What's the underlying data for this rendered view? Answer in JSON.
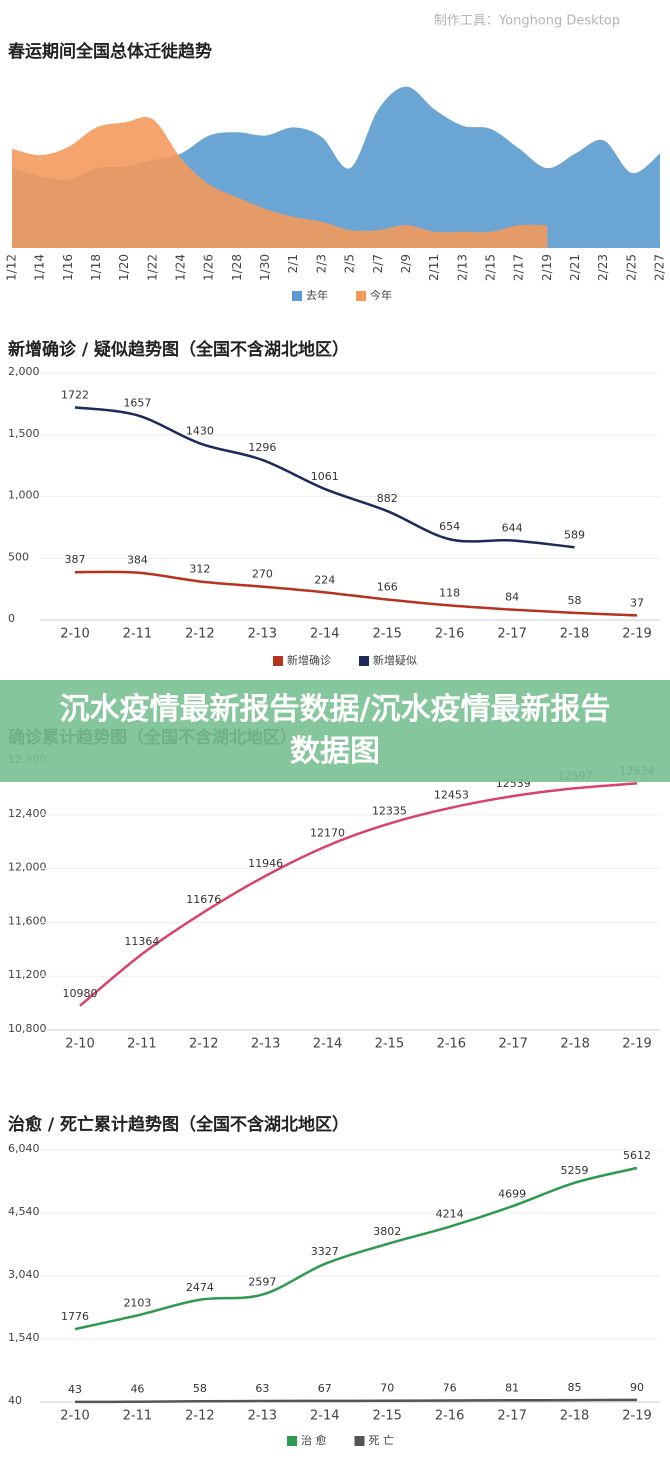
{
  "watermark": "制作工具：Yonghong Desktop",
  "banner": "沉水疫情最新报告数据/沉水疫情最新报告数据图",
  "chart_data": [
    {
      "type": "area",
      "title": "春运期间全国总体迁徙趋势",
      "categories": [
        "1/12",
        "1/14",
        "1/16",
        "1/18",
        "1/20",
        "1/22",
        "1/24",
        "1/26",
        "1/28",
        "1/30",
        "2/1",
        "2/3",
        "2/5",
        "2/7",
        "2/9",
        "2/11",
        "2/13",
        "2/15",
        "2/17",
        "2/19",
        "2/21",
        "2/23",
        "2/25",
        "2/27"
      ],
      "ylim": [
        0,
        100
      ],
      "series": [
        {
          "name": "去年",
          "color": "#5b9bcf",
          "values": [
            49,
            44,
            42,
            49,
            50,
            54,
            58,
            69,
            71,
            69,
            74,
            68,
            49,
            85,
            99,
            85,
            75,
            73,
            61,
            49,
            58,
            66,
            46,
            58
          ]
        },
        {
          "name": "今年",
          "color": "#f39a5c",
          "values": [
            61,
            57,
            62,
            74,
            77,
            79,
            55,
            39,
            31,
            24,
            19,
            16,
            11,
            11,
            14,
            10,
            10,
            10,
            14,
            14,
            null,
            null,
            null,
            null
          ]
        }
      ]
    },
    {
      "type": "line",
      "title": "新增确诊 / 疑似趋势图（全国不含湖北地区）",
      "categories": [
        "2-10",
        "2-11",
        "2-12",
        "2-13",
        "2-14",
        "2-15",
        "2-16",
        "2-17",
        "2-18",
        "2-19"
      ],
      "ylim": [
        0,
        2000
      ],
      "yticks": [
        0,
        500,
        {
          "value": 1000,
          "label": "1,000"
        },
        {
          "value": 1500,
          "label": "1,500"
        },
        {
          "value": 2000,
          "label": "2,000"
        }
      ],
      "grid": true,
      "series": [
        {
          "name": "新增确诊",
          "color": "#b5331f",
          "values": [
            387,
            384,
            312,
            270,
            224,
            166,
            118,
            84,
            58,
            37
          ]
        },
        {
          "name": "新增疑似",
          "color": "#1b2a5a",
          "values": [
            1722,
            1657,
            1430,
            1296,
            1061,
            882,
            654,
            644,
            589,
            null
          ]
        }
      ]
    },
    {
      "type": "line",
      "title": "确诊累计趋势图（全国不含湖北地区）",
      "categories": [
        "2-10",
        "2-11",
        "2-12",
        "2-13",
        "2-14",
        "2-15",
        "2-16",
        "2-17",
        "2-18",
        "2-19"
      ],
      "ylim": [
        10800,
        12800
      ],
      "yticks": [
        {
          "value": 10800,
          "label": "10,800"
        },
        {
          "value": 11200,
          "label": "11,200"
        },
        {
          "value": 11600,
          "label": "11,600"
        },
        {
          "value": 12000,
          "label": "12,000"
        },
        {
          "value": 12400,
          "label": "12,400"
        },
        {
          "value": 12800,
          "label": "12,800"
        }
      ],
      "grid": true,
      "color": "#d9436a",
      "values": [
        10980,
        11364,
        11676,
        11946,
        12170,
        12335,
        12453,
        12539,
        12597,
        12634
      ]
    },
    {
      "type": "line",
      "title": "治愈 / 死亡累计趋势图（全国不含湖北地区）",
      "categories": [
        "2-10",
        "2-11",
        "2-12",
        "2-13",
        "2-14",
        "2-15",
        "2-16",
        "2-17",
        "2-18",
        "2-19"
      ],
      "ylim": [
        40,
        6040
      ],
      "yticks": [
        40,
        {
          "value": 1540,
          "label": "1,540"
        },
        {
          "value": 3040,
          "label": "3,040"
        },
        {
          "value": 4540,
          "label": "4,540"
        },
        {
          "value": 6040,
          "label": "6,040"
        }
      ],
      "grid": true,
      "series": [
        {
          "name": "治 愈",
          "color": "#2e9a50",
          "values": [
            1776,
            2103,
            2474,
            2597,
            3327,
            3802,
            4214,
            4699,
            5259,
            5612
          ]
        },
        {
          "name": "死 亡",
          "color": "#555555",
          "values": [
            43,
            46,
            58,
            63,
            67,
            70,
            76,
            81,
            85,
            90
          ]
        }
      ]
    }
  ]
}
